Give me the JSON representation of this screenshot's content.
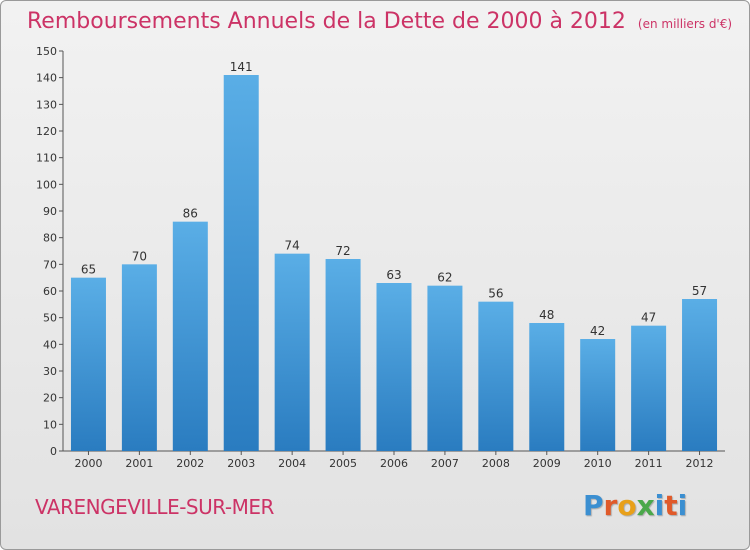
{
  "header": {
    "title": "Remboursements Annuels de la Dette de 2000 à 2012",
    "subtitle": "(en milliers d'€)"
  },
  "footer": {
    "city": "VARENGEVILLE-SUR-MER",
    "logo_letters": [
      "P",
      "r",
      "o",
      "x",
      "i",
      "t",
      "i"
    ],
    "logo_colors": [
      "#3b8fd1",
      "#e05a2a",
      "#e8a019",
      "#4aa84a",
      "#3b8fd1",
      "#e05a2a",
      "#3b8fd1"
    ]
  },
  "colors": {
    "bar_light": "#5aaee6",
    "bar_dark": "#2a7cc0",
    "title": "#cc3366"
  },
  "chart_data": {
    "type": "bar",
    "title": "Remboursements Annuels de la Dette de 2000 à 2012",
    "xlabel": "",
    "ylabel": "",
    "categories": [
      "2000",
      "2001",
      "2002",
      "2003",
      "2004",
      "2005",
      "2006",
      "2007",
      "2008",
      "2009",
      "2010",
      "2011",
      "2012"
    ],
    "values": [
      65,
      70,
      86,
      141,
      74,
      72,
      63,
      62,
      56,
      48,
      42,
      47,
      57
    ],
    "ylim": [
      0,
      150
    ],
    "yticks": [
      0,
      10,
      20,
      30,
      40,
      50,
      60,
      70,
      80,
      90,
      100,
      110,
      120,
      130,
      140,
      150
    ],
    "grid": false,
    "legend": "none"
  }
}
